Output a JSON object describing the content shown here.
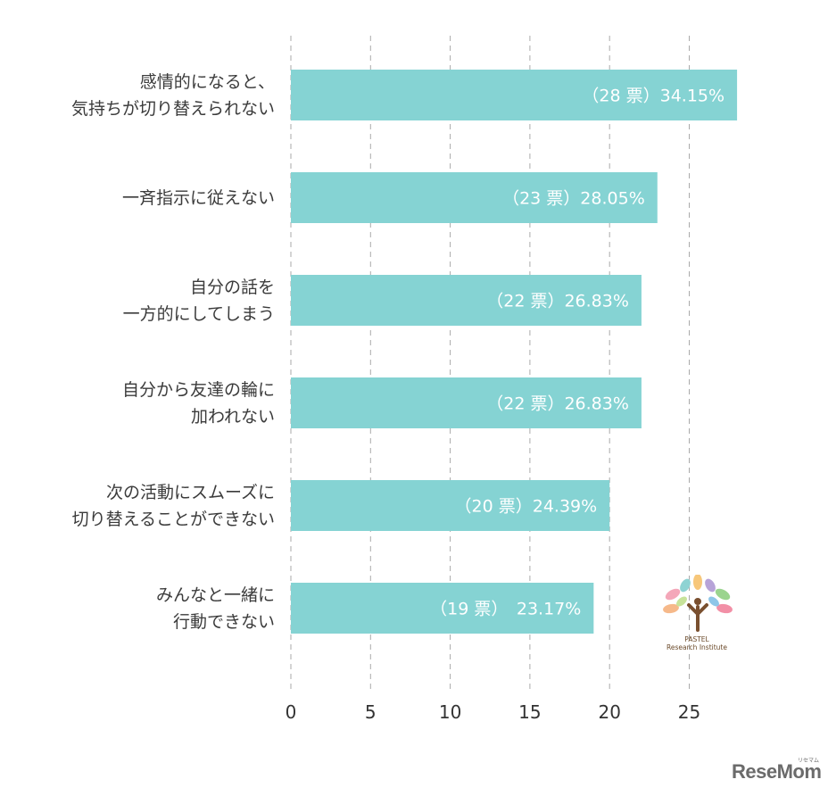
{
  "chart_data": {
    "type": "bar",
    "orientation": "horizontal",
    "categories": [
      [
        "感情的になると、",
        "気持ちが切り替えられない"
      ],
      [
        "一斉指示に従えない"
      ],
      [
        "自分の話を",
        "一方的にしてしまう"
      ],
      [
        "自分から友達の輪に",
        "加われない"
      ],
      [
        "次の活動にスムーズに",
        "切り替えることができない"
      ],
      [
        "みんなと一緒に",
        "行動できない"
      ]
    ],
    "values": [
      28,
      23,
      22,
      22,
      20,
      19
    ],
    "data_labels": [
      "（28 票）34.15%",
      "（23 票）28.05%",
      "（22 票）26.83%",
      "（22 票）26.83%",
      "（20 票）24.39%",
      "（19 票）　23.17%"
    ],
    "xlim": [
      0,
      28
    ],
    "x_ticks": [
      0,
      5,
      10,
      15,
      20,
      25
    ],
    "grid": "vertical dashed",
    "bar_color": "#85d3d3",
    "grid_color": "#aaaaaa"
  },
  "logo": {
    "caption_line1": "PASTEL",
    "caption_line2": "Research Institute"
  },
  "watermark": {
    "text": "ReseMom",
    "small": "リセマム"
  }
}
